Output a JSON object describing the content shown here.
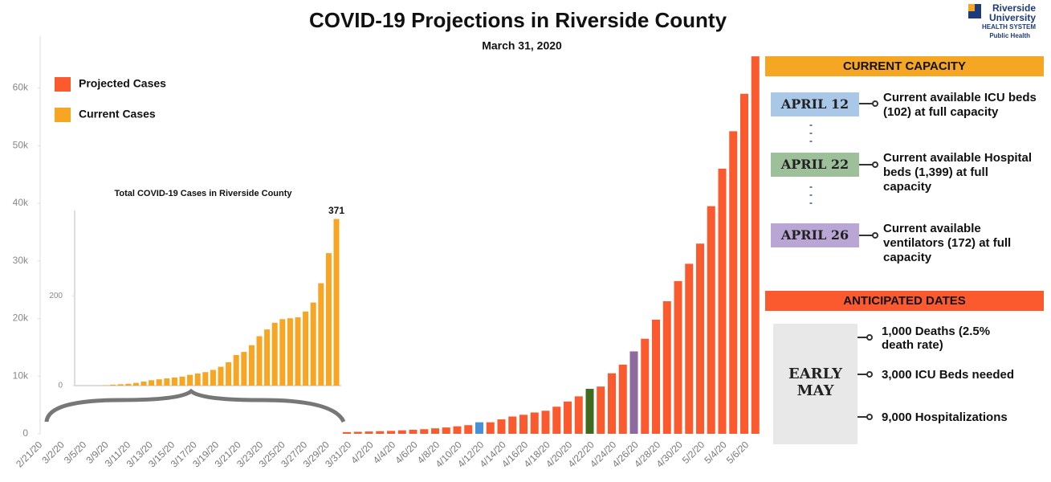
{
  "chart_data": [
    {
      "type": "bar",
      "title": "COVID-19 Projections in Riverside County",
      "subtitle": "March 31, 2020",
      "categories": [
        "2/21/20",
        null,
        "3/2/20",
        null,
        "3/5/20",
        null,
        "3/9/20",
        null,
        "3/11/20",
        null,
        "3/13/20",
        null,
        "3/15/20",
        null,
        "3/17/20",
        null,
        "3/19/20",
        null,
        "3/21/20",
        null,
        "3/23/20",
        null,
        "3/25/20",
        null,
        "3/27/20",
        null,
        "3/29/20",
        null,
        "3/31/20",
        null,
        "4/2/20",
        null,
        "4/4/20",
        null,
        "4/6/20",
        null,
        "4/8/20",
        null,
        "4/10/20",
        null,
        "4/12/20",
        null,
        "4/14/20",
        null,
        "4/16/20",
        null,
        "4/18/20",
        null,
        "4/20/20",
        null,
        "4/22/20",
        null,
        "4/24/20",
        null,
        "4/26/20",
        null,
        "4/28/20",
        null,
        "4/30/20",
        null,
        "5/2/20",
        null,
        "5/4/20",
        null,
        "5/6/20",
        null
      ],
      "series": [
        {
          "name": "Projected Cases",
          "color": "#fb5a2f",
          "values": [
            null,
            null,
            null,
            null,
            null,
            null,
            null,
            null,
            null,
            null,
            null,
            null,
            null,
            null,
            null,
            null,
            null,
            null,
            null,
            null,
            null,
            null,
            null,
            null,
            null,
            null,
            null,
            null,
            300,
            350,
            400,
            450,
            500,
            600,
            700,
            800,
            950,
            1100,
            1300,
            1500,
            2000,
            2000,
            2500,
            3000,
            3300,
            3700,
            4000,
            4700,
            5600,
            6500,
            7800,
            8200,
            10500,
            12000,
            14300,
            16500,
            19800,
            23000,
            26500,
            29500,
            33000,
            39500,
            46000,
            52500,
            59000,
            65500
          ],
          "colors": [
            null,
            null,
            null,
            null,
            null,
            null,
            null,
            null,
            null,
            null,
            null,
            null,
            null,
            null,
            null,
            null,
            null,
            null,
            null,
            null,
            null,
            null,
            null,
            null,
            null,
            null,
            null,
            null,
            null,
            null,
            null,
            null,
            null,
            null,
            null,
            null,
            null,
            null,
            null,
            null,
            "#4a90d9",
            null,
            null,
            null,
            null,
            null,
            null,
            null,
            null,
            null,
            "#3f6b21",
            null,
            null,
            null,
            "#8e6a9e",
            null,
            null,
            null,
            null,
            null,
            null,
            null,
            null,
            null,
            null,
            null
          ]
        }
      ],
      "ylim": [
        0,
        69000
      ],
      "yticks": [
        0,
        {
          "value": 10000,
          "label": "10k"
        },
        {
          "value": 20000,
          "label": "20k"
        },
        {
          "value": 30000,
          "label": "30k"
        },
        {
          "value": 40000,
          "label": "40k"
        },
        {
          "value": 50000,
          "label": "50k"
        },
        {
          "value": 60000,
          "label": "60k"
        }
      ],
      "grid": false,
      "legend": "top-left"
    },
    {
      "type": "bar",
      "title": "Total COVID-19 Cases in Riverside County",
      "series": [
        {
          "name": "Current Cases",
          "color": "#f6a623",
          "values": [
            1,
            2,
            3,
            4,
            6,
            9,
            12,
            14,
            16,
            18,
            20,
            24,
            27,
            30,
            35,
            42,
            52,
            68,
            75,
            90,
            110,
            125,
            140,
            148,
            150,
            152,
            165,
            185,
            228,
            295,
            371
          ]
        }
      ],
      "ylim": [
        0,
        390
      ],
      "yticks": [
        0,
        200
      ],
      "label_last": true
    }
  ],
  "capacity": {
    "heading": "CURRENT CAPACITY",
    "items": [
      {
        "date": "APRIL 12",
        "text": "Current available ICU beds (102) at full capacity",
        "color": "#a9c8e8"
      },
      {
        "date": "APRIL 22",
        "text": "Current available Hospital beds (1,399) at full capacity",
        "color": "#9dbf9a"
      },
      {
        "date": "APRIL 26",
        "text": "Current available ventilators (172) at full capacity",
        "color": "#b9a6d4"
      }
    ]
  },
  "anticipated": {
    "heading": "ANTICIPATED DATES",
    "date": "EARLY MAY",
    "items": [
      "1,000 Deaths (2.5% death rate)",
      "3,000 ICU Beds needed",
      "9,000 Hospitalizations"
    ]
  },
  "logo": {
    "line1": "Riverside",
    "line2": "University",
    "line3": "HEALTH SYSTEM",
    "line4": "Public Health"
  }
}
